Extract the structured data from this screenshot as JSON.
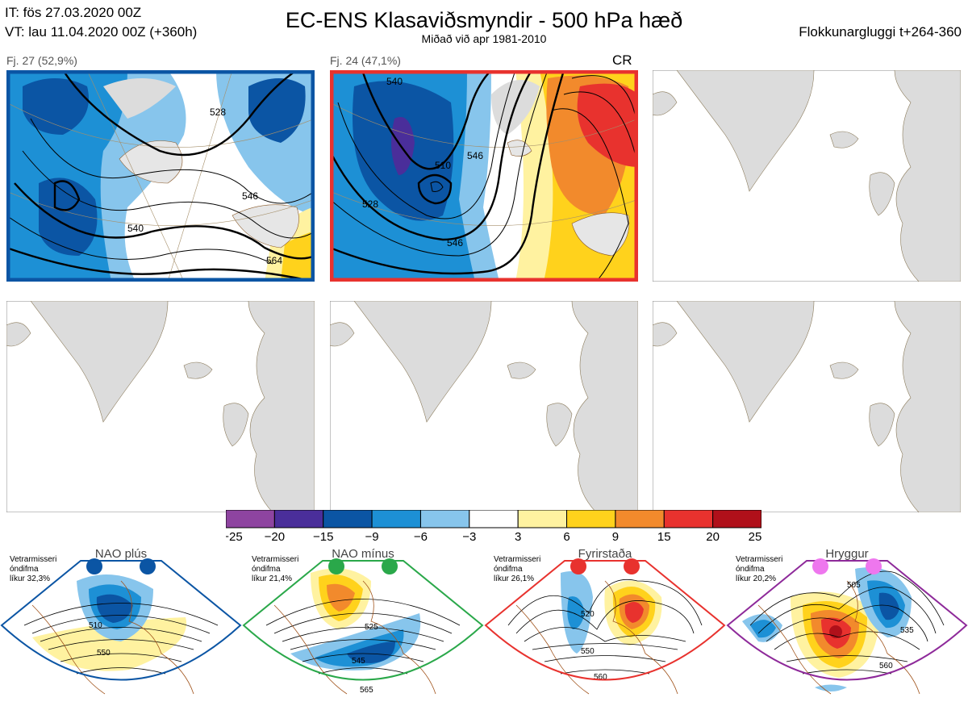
{
  "header": {
    "init": "IT: fös 27.03.2020 00Z",
    "valid": "VT: lau 11.04.2020 00Z  (+360h)",
    "title": "EC-ENS Klasaviðsmyndir - 500 hPa hæð",
    "subtitle": "Miðað við apr 1981-2010",
    "window": "Flokkunargluggi t+264-360"
  },
  "clusters": [
    {
      "label": "Fj. 27 (52,9%)",
      "frame_color": "#0b55a4",
      "tag": "",
      "contours": [
        "528",
        "546",
        "540",
        "546",
        "564",
        "54"
      ]
    },
    {
      "label": "Fj. 24 (47,1%)",
      "frame_color": "#e8322e",
      "tag": "CR",
      "contours": [
        "540",
        "546",
        "528",
        "510",
        "528",
        "546",
        "54",
        "54"
      ]
    },
    {
      "label": "",
      "frame_color": "#888888",
      "tag": "",
      "contours": []
    },
    {
      "label": "",
      "frame_color": "#888888",
      "tag": "",
      "contours": []
    },
    {
      "label": "",
      "frame_color": "#888888",
      "tag": "",
      "contours": []
    },
    {
      "label": "",
      "frame_color": "#888888",
      "tag": "",
      "contours": []
    }
  ],
  "colorbar": {
    "ticks": [
      "−25",
      "−20",
      "−15",
      "−9",
      "−6",
      "−3",
      "3",
      "6",
      "9",
      "15",
      "20",
      "25"
    ],
    "colors": [
      "#8e44a0",
      "#4a2e9a",
      "#0b55a4",
      "#1d90d5",
      "#87c5ec",
      "#ffffff",
      "#fff2a0",
      "#ffd21c",
      "#f28a2c",
      "#e8322e",
      "#b0101a"
    ]
  },
  "regimes": [
    {
      "title": "NAO plús",
      "note": [
        "Vetrarmisseri",
        "óndifma",
        "líkur 32,3%"
      ],
      "color": "#0b55a4",
      "dot_color": "#0b55a4",
      "contours": [
        "510",
        "550"
      ]
    },
    {
      "title": "NAO mínus",
      "note": [
        "Vetrarmisseri",
        "óndifma",
        "líkur 21,4%"
      ],
      "color": "#2aa84a",
      "dot_color": "#2aa84a",
      "contours": [
        "525",
        "545",
        "565"
      ]
    },
    {
      "title": "Fyrirstaða",
      "note": [
        "Vetrarmisseri",
        "óndifma",
        "líkur 26,1%"
      ],
      "color": "#e8322e",
      "dot_color": "#e8322e",
      "contours": [
        "520",
        "550",
        "560"
      ]
    },
    {
      "title": "Hryggur",
      "note": [
        "Vetrarmisseri",
        "óndifma",
        "líkur 20,2%"
      ],
      "color": "#8e2a9a",
      "dot_color": "#ee77ee",
      "contours": [
        "505",
        "535",
        "560"
      ]
    }
  ]
}
